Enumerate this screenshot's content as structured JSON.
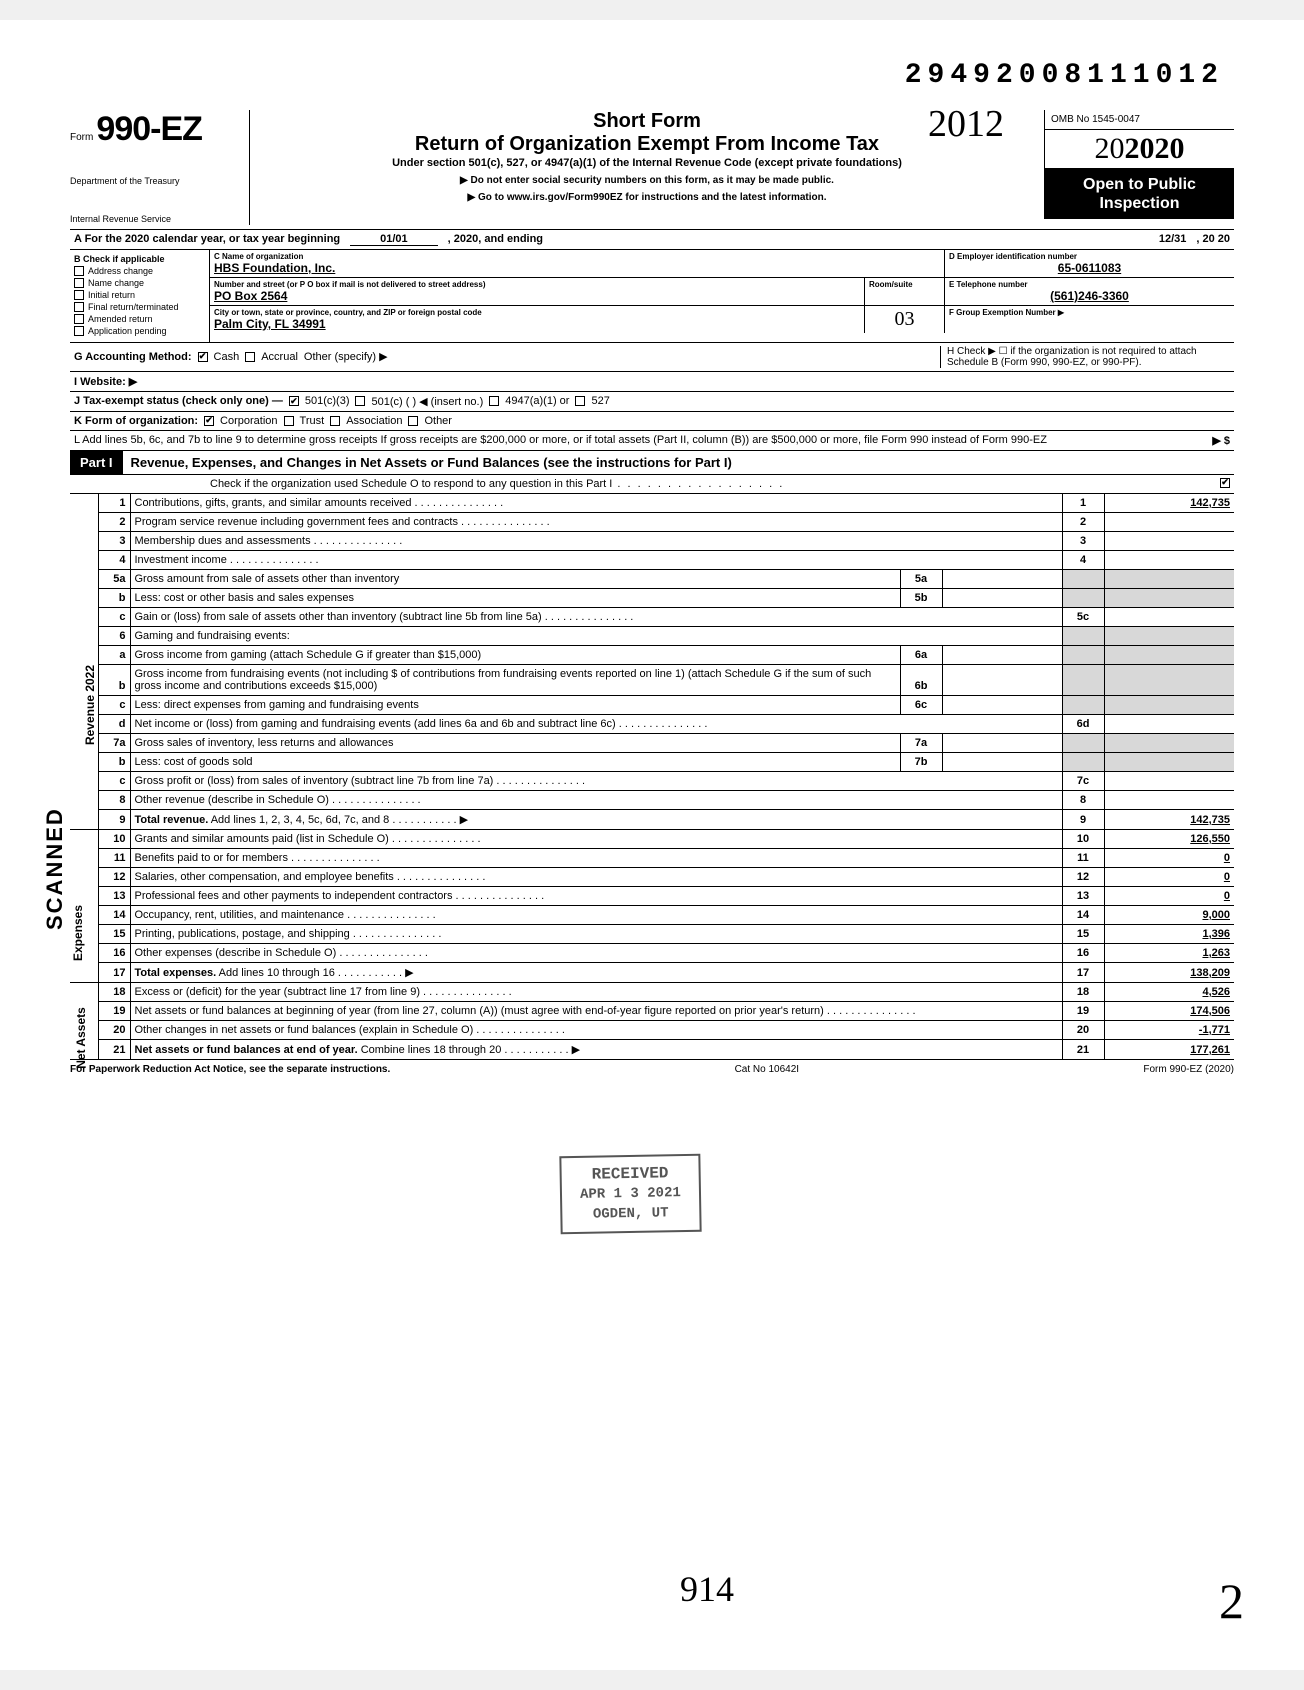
{
  "doc_id": "29492008111012",
  "form_number_prefix": "Form",
  "form_number": "990-EZ",
  "short_form": "Short Form",
  "return_title": "Return of Organization Exempt From Income Tax",
  "section_text": "Under section 501(c), 527, or 4947(a)(1) of the Internal Revenue Code (except private foundations)",
  "ssn_warn": "▶ Do not enter social security numbers on this form, as it may be made public.",
  "goto": "▶ Go to www.irs.gov/Form990EZ for instructions and the latest information.",
  "dept1": "Department of the Treasury",
  "dept2": "Internal Revenue Service",
  "year_hand": "2012",
  "omb": "OMB No 1545-0047",
  "big_year": "2020",
  "open_public": "Open to Public Inspection",
  "line_a": "A  For the 2020 calendar year, or tax year beginning",
  "line_a_begin": "01/01",
  "line_a_mid": ", 2020, and ending",
  "line_a_end_m": "12/31",
  "line_a_end_y": ", 20   20",
  "b_label": "B  Check if applicable",
  "b_opts": [
    "Address change",
    "Name change",
    "Initial return",
    "Final return/terminated",
    "Amended return",
    "Application pending"
  ],
  "c_label": "C  Name of organization",
  "org_name": "HBS Foundation, Inc.",
  "addr_label": "Number and street (or P O  box if mail is not delivered to street address)",
  "addr": "PO Box 2564",
  "room_label": "Room/suite",
  "city_label": "City or town, state or province, country, and ZIP or foreign postal code",
  "city": "Palm City, FL 34991",
  "d_label": "D Employer identification number",
  "ein": "65-0611083",
  "e_label": "E Telephone number",
  "phone": "(561)246-3360",
  "f_label": "F Group Exemption Number ▶",
  "room_hand": "03",
  "g_label": "G  Accounting Method:",
  "g_cash": "Cash",
  "g_accrual": "Accrual",
  "g_other": "Other (specify) ▶",
  "h_label": "H  Check ▶ ☐ if the organization is not required to attach Schedule B (Form 990, 990-EZ, or 990-PF).",
  "i_label": "I   Website: ▶",
  "j_label": "J  Tax-exempt status (check only one) —",
  "j_501c3": "501(c)(3)",
  "j_501c": "501(c) (       ) ◀ (insert no.)",
  "j_4947": "4947(a)(1) or",
  "j_527": "527",
  "k_label": "K  Form of organization:",
  "k_corp": "Corporation",
  "k_trust": "Trust",
  "k_assoc": "Association",
  "k_other": "Other",
  "l_text": "L  Add lines 5b, 6c, and 7b to line 9 to determine gross receipts  If gross receipts are $200,000 or more, or if total assets (Part II, column (B)) are $500,000 or more, file Form 990 instead of Form 990-EZ",
  "l_arrow": "▶  $",
  "part1_tab": "Part I",
  "part1_title": "Revenue, Expenses, and Changes in Net Assets or Fund Balances (see the instructions for Part I)",
  "part1_check": "Check if the organization used Schedule O to respond to any question in this Part I",
  "part1_checked": "✔",
  "side_rev": "Revenue",
  "side_exp": "Expenses",
  "side_na": "Net Assets",
  "scanned": "SCANNED",
  "rev_year_side": "2022",
  "lines": {
    "1": {
      "n": "1",
      "d": "Contributions, gifts, grants, and similar amounts received",
      "rn": "1",
      "rv": "142,735"
    },
    "2": {
      "n": "2",
      "d": "Program service revenue including government fees and contracts",
      "rn": "2",
      "rv": ""
    },
    "3": {
      "n": "3",
      "d": "Membership dues and assessments",
      "rn": "3",
      "rv": ""
    },
    "4": {
      "n": "4",
      "d": "Investment income",
      "rn": "4",
      "rv": ""
    },
    "5a": {
      "n": "5a",
      "d": "Gross amount from sale of assets other than inventory",
      "ib": "5a"
    },
    "5b": {
      "n": "b",
      "d": "Less: cost or other basis and sales expenses",
      "ib": "5b"
    },
    "5c": {
      "n": "c",
      "d": "Gain or (loss) from sale of assets other than inventory (subtract line 5b from line 5a)",
      "rn": "5c",
      "rv": ""
    },
    "6": {
      "n": "6",
      "d": "Gaming and fundraising events:"
    },
    "6a": {
      "n": "a",
      "d": "Gross income from gaming (attach Schedule G if greater than $15,000)",
      "ib": "6a"
    },
    "6b": {
      "n": "b",
      "d": "Gross income from fundraising events (not including  $                    of contributions from fundraising events reported on line 1) (attach Schedule G if the sum of such gross income and contributions exceeds $15,000)",
      "ib": "6b"
    },
    "6c": {
      "n": "c",
      "d": "Less: direct expenses from gaming and fundraising events",
      "ib": "6c"
    },
    "6d": {
      "n": "d",
      "d": "Net income or (loss) from gaming and fundraising events (add lines 6a and 6b and subtract line 6c)",
      "rn": "6d",
      "rv": ""
    },
    "7a": {
      "n": "7a",
      "d": "Gross sales of inventory, less returns and allowances",
      "ib": "7a"
    },
    "7b": {
      "n": "b",
      "d": "Less: cost of goods sold",
      "ib": "7b"
    },
    "7c": {
      "n": "c",
      "d": "Gross profit or (loss) from sales of inventory (subtract line 7b from line 7a)",
      "rn": "7c",
      "rv": ""
    },
    "8": {
      "n": "8",
      "d": "Other revenue (describe in Schedule O)",
      "rn": "8",
      "rv": ""
    },
    "9": {
      "n": "9",
      "d": "Total revenue. Add lines 1, 2, 3, 4, 5c, 6d, 7c, and 8",
      "rn": "9",
      "rv": "142,735",
      "arrow": true,
      "bold": true
    },
    "10": {
      "n": "10",
      "d": "Grants and similar amounts paid (list in Schedule O)",
      "rn": "10",
      "rv": "126,550"
    },
    "11": {
      "n": "11",
      "d": "Benefits paid to or for members",
      "rn": "11",
      "rv": "0"
    },
    "12": {
      "n": "12",
      "d": "Salaries, other compensation, and employee benefits",
      "rn": "12",
      "rv": "0"
    },
    "13": {
      "n": "13",
      "d": "Professional fees and other payments to independent contractors",
      "rn": "13",
      "rv": "0"
    },
    "14": {
      "n": "14",
      "d": "Occupancy, rent, utilities, and maintenance",
      "rn": "14",
      "rv": "9,000"
    },
    "15": {
      "n": "15",
      "d": "Printing, publications, postage, and shipping",
      "rn": "15",
      "rv": "1,396"
    },
    "16": {
      "n": "16",
      "d": "Other expenses (describe in Schedule O)",
      "rn": "16",
      "rv": "1,263"
    },
    "17": {
      "n": "17",
      "d": "Total expenses. Add lines 10 through 16",
      "rn": "17",
      "rv": "138,209",
      "arrow": true,
      "bold": true
    },
    "18": {
      "n": "18",
      "d": "Excess or (deficit) for the year (subtract line 17 from line 9)",
      "rn": "18",
      "rv": "4,526"
    },
    "19": {
      "n": "19",
      "d": "Net assets or fund balances at beginning of year (from line 27, column (A)) (must agree with end-of-year figure reported on prior year's return)",
      "rn": "19",
      "rv": "174,506"
    },
    "20": {
      "n": "20",
      "d": "Other changes in net assets or fund balances (explain in Schedule O)",
      "rn": "20",
      "rv": "-1,771"
    },
    "21": {
      "n": "21",
      "d": "Net assets or fund balances at end of year. Combine lines 18 through 20",
      "rn": "21",
      "rv": "177,261",
      "arrow": true,
      "bold": true
    }
  },
  "footer_left": "For Paperwork Reduction Act Notice, see the separate instructions.",
  "footer_mid": "Cat No  10642I",
  "footer_right": "Form 990-EZ (2020)",
  "stamp_recv": "RECEIVED",
  "stamp_date": "APR 1 3 2021",
  "stamp_ogden": "OGDEN, UT",
  "hand_914": "914",
  "hand_2": "2",
  "colors": {
    "text": "#000000",
    "bg": "#ffffff",
    "grey": "#d8d8d8",
    "stamp": "#555555"
  }
}
